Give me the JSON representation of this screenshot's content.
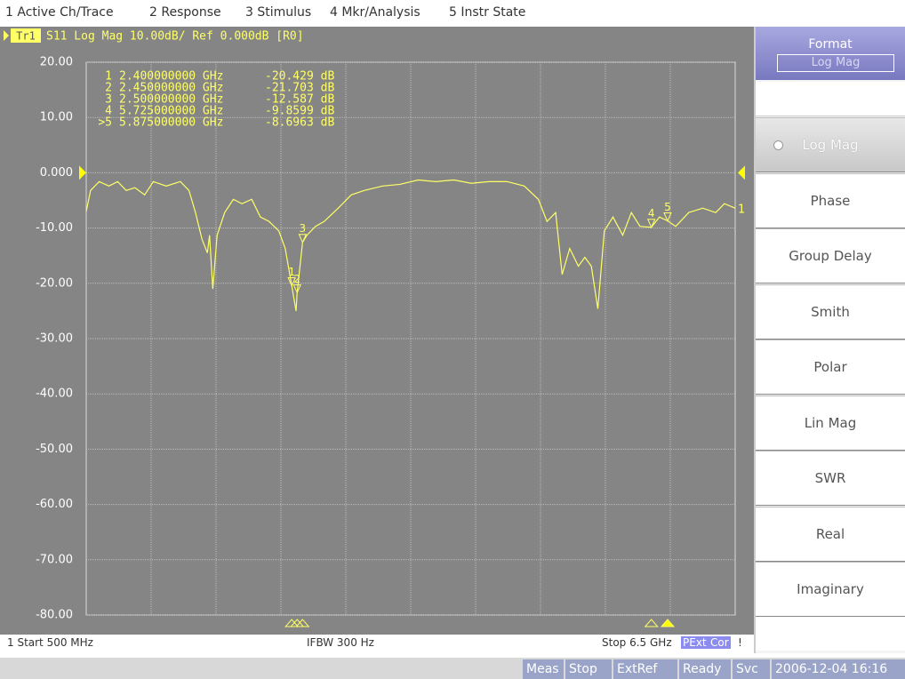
{
  "menu": [
    "1 Active Ch/Trace",
    "2 Response",
    "3 Stimulus",
    "4 Mkr/Analysis",
    "5 Instr State"
  ],
  "chart_data": {
    "type": "line",
    "trace_label": "Tr1",
    "title": "S11 Log Mag 10.00dB/ Ref 0.000dB [R0]",
    "xlim": [
      0.5,
      6.5
    ],
    "ylim": [
      -80,
      20
    ],
    "yticks": [
      {
        "value": 20,
        "label": "20.00"
      },
      {
        "value": 10,
        "label": "10.00"
      },
      {
        "value": 0,
        "label": "0.000"
      },
      {
        "value": -10,
        "label": "-10.00"
      },
      {
        "value": -20,
        "label": "-20.00"
      },
      {
        "value": -30,
        "label": "-30.00"
      },
      {
        "value": -40,
        "label": "-40.00"
      },
      {
        "value": -50,
        "label": "-50.00"
      },
      {
        "value": -60,
        "label": "-60.00"
      },
      {
        "value": -70,
        "label": "-70.00"
      },
      {
        "value": -80,
        "label": "-80.00"
      }
    ],
    "ref_level": 0,
    "grid": true,
    "series": [
      {
        "name": "1",
        "color": "#ffff66",
        "x": [
          0.5,
          0.54,
          0.62,
          0.71,
          0.79,
          0.87,
          0.95,
          1.04,
          1.12,
          1.24,
          1.37,
          1.45,
          1.51,
          1.57,
          1.62,
          1.64,
          1.67,
          1.71,
          1.78,
          1.86,
          1.94,
          2.03,
          2.11,
          2.19,
          2.28,
          2.34,
          2.4,
          2.44,
          2.45,
          2.5,
          2.54,
          2.62,
          2.7,
          2.83,
          2.95,
          3.07,
          3.24,
          3.4,
          3.57,
          3.73,
          3.9,
          4.06,
          4.22,
          4.39,
          4.55,
          4.68,
          4.76,
          4.84,
          4.9,
          4.97,
          5.05,
          5.11,
          5.17,
          5.23,
          5.29,
          5.37,
          5.46,
          5.54,
          5.62,
          5.725,
          5.8,
          5.875,
          5.95,
          6.07,
          6.2,
          6.32,
          6.4,
          6.5
        ],
        "values": [
          -7,
          -3.2,
          -1.6,
          -2.4,
          -1.6,
          -3.2,
          -2.7,
          -4,
          -1.6,
          -2.4,
          -1.6,
          -3.2,
          -7.2,
          -12,
          -14.5,
          -11.3,
          -21,
          -11.3,
          -7.2,
          -4.8,
          -5.6,
          -4.8,
          -8,
          -8.8,
          -10.5,
          -13.7,
          -20.429,
          -25,
          -21.703,
          -12.587,
          -11.3,
          -9.7,
          -8.8,
          -6.4,
          -4,
          -3.2,
          -2.4,
          -2.1,
          -1.3,
          -1.6,
          -1.3,
          -1.9,
          -1.6,
          -1.6,
          -2.4,
          -4.8,
          -8.8,
          -7.2,
          -18.4,
          -13.7,
          -16.9,
          -15.3,
          -16.9,
          -24.6,
          -10.5,
          -8,
          -11.3,
          -7.2,
          -9.7,
          -9.8599,
          -8,
          -8.6963,
          -9.7,
          -7.2,
          -6.4,
          -7.2,
          -5.6,
          -6.4
        ]
      }
    ],
    "markers": [
      {
        "name": "1",
        "table_label": "1",
        "freq": 2.4,
        "freq_label": "2.400000000 GHz",
        "value": -20.429,
        "value_label": "-20.429 dB"
      },
      {
        "name": "2",
        "table_label": "2",
        "freq": 2.45,
        "freq_label": "2.450000000 GHz",
        "value": -21.703,
        "value_label": "-21.703 dB"
      },
      {
        "name": "3",
        "table_label": "3",
        "freq": 2.5,
        "freq_label": "2.500000000 GHz",
        "value": -12.587,
        "value_label": "-12.587 dB"
      },
      {
        "name": "4",
        "table_label": "4",
        "freq": 5.725,
        "freq_label": "5.725000000 GHz",
        "value": -9.8599,
        "value_label": "-9.8599 dB"
      },
      {
        "name": "5",
        "table_label": ">5",
        "freq": 5.875,
        "freq_label": "5.875000000 GHz",
        "value": -8.6963,
        "value_label": "-8.6963 dB"
      }
    ],
    "start_label": "1  Start 500 MHz",
    "ifbw_label": "IFBW 300 Hz",
    "stop_label": "Stop 6.5 GHz",
    "indicators": [
      "PExt",
      "Cor"
    ],
    "warning": "!"
  },
  "softkeys": {
    "title": "Format",
    "current": "Log Mag",
    "items": [
      "Log Mag",
      "Phase",
      "Group Delay",
      "Smith",
      "Polar",
      "Lin Mag",
      "SWR",
      "Real",
      "Imaginary"
    ],
    "selected": 0
  },
  "status": [
    "Meas",
    "Stop",
    "ExtRef",
    "Ready",
    "Svc",
    "2006-12-04 16:16"
  ]
}
